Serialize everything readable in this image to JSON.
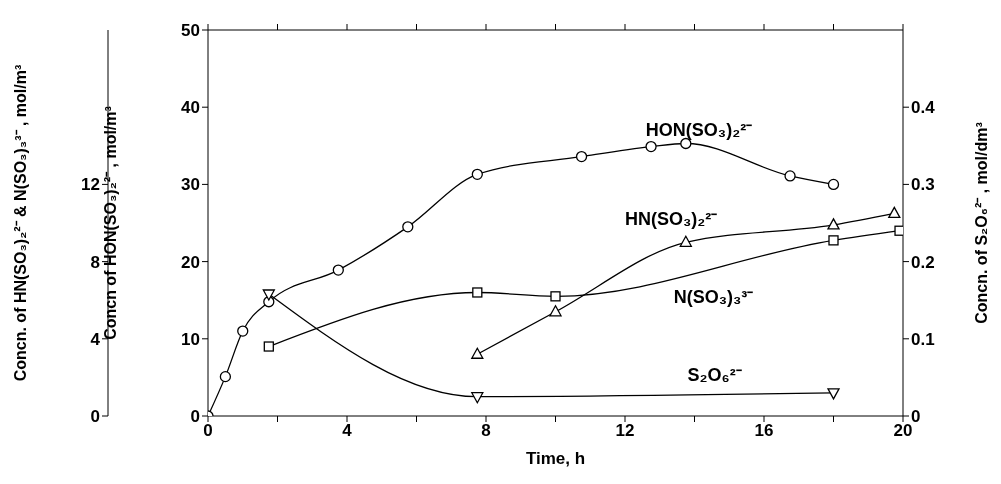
{
  "chart_data": {
    "type": "line",
    "xlabel": "Time, h",
    "ylabel": "Concn of HON(SO₃)₂²⁻ , mol/m³",
    "y2label": "Concn. of S₂O₆²⁻ , mol/dm³",
    "y3label": "Concn. of HN(SO₃)₂²⁻ & N(SO₃)₃³⁻ , mol/m³",
    "xlim": [
      0,
      20
    ],
    "xticks": [
      0,
      {
        "value": 2,
        "label": null
      },
      4,
      {
        "value": 6,
        "label": null
      },
      8,
      {
        "value": 10,
        "label": null
      },
      12,
      {
        "value": 14,
        "label": null
      },
      16,
      {
        "value": 18,
        "label": null
      },
      20
    ],
    "ylim": [
      0,
      50
    ],
    "yticks": [
      0,
      10,
      20,
      30,
      40,
      50
    ],
    "y2lim": [
      0,
      0.5
    ],
    "y2ticks": [
      0,
      0.1,
      0.2,
      0.3,
      0.4
    ],
    "y3lim": [
      0,
      20
    ],
    "y3ticks": [
      0,
      4,
      8,
      12
    ],
    "series": [
      {
        "name": "HON(SO₃)₂²⁻",
        "color": "#000000",
        "marker": "circle",
        "x": [
          0,
          0.5,
          1,
          1.75,
          3.75,
          5.75,
          7.75,
          10.75,
          12.75,
          13.75,
          16.75,
          18
        ],
        "values": [
          0,
          5.1,
          11,
          14.8,
          18.9,
          24.5,
          31.3,
          33.6,
          34.9,
          35.3,
          31.1,
          30
        ]
      },
      {
        "name": "HN(SO₃)₂²⁻",
        "color": "#000000",
        "marker": "triangle",
        "axis": "y3",
        "x": [
          7.75,
          10,
          13.75,
          18,
          19.75
        ],
        "values": [
          3.2,
          5.4,
          9,
          9.9,
          10.5
        ]
      },
      {
        "name": "N(SO₃)₃³⁻",
        "color": "#000000",
        "marker": "square",
        "axis": "y3",
        "x": [
          1.75,
          7.75,
          10,
          18,
          19.9
        ],
        "values": [
          3.6,
          6.4,
          6.2,
          9.1,
          9.6
        ]
      },
      {
        "name": "S₂O₆²⁻",
        "color": "#000000",
        "marker": "triangle-down",
        "axis": "y2",
        "x": [
          1.75,
          7.75,
          18
        ],
        "values": [
          0.158,
          0.025,
          0.03
        ]
      }
    ]
  }
}
